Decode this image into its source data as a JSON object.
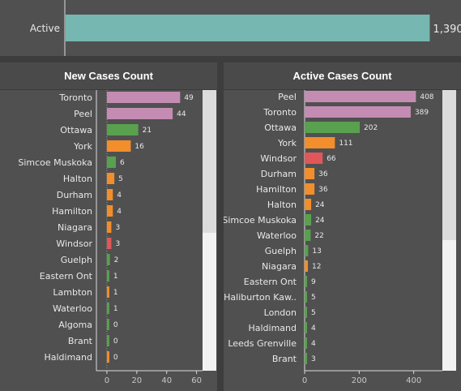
{
  "colors": {
    "purple": "#c48cb3",
    "green": "#59a14f",
    "orange": "#f28e2b",
    "red": "#e15759",
    "teal": "#76b7b2"
  },
  "chart_data": [
    {
      "type": "bar",
      "title": "",
      "categories": [
        "Active"
      ],
      "values": [
        1390
      ],
      "value_labels": [
        "1,390"
      ],
      "colors": [
        "teal"
      ],
      "xlim": [
        0,
        1500
      ],
      "show_axis": false
    },
    {
      "type": "bar",
      "title": "New Cases Count",
      "categories": [
        "Toronto",
        "Peel",
        "Ottawa",
        "York",
        "Simcoe Muskoka",
        "Halton",
        "Durham",
        "Hamilton",
        "Niagara",
        "Windsor",
        "Guelph",
        "Eastern Ont",
        "Lambton",
        "Waterloo",
        "Algoma",
        "Brant",
        "Haldimand"
      ],
      "values": [
        49,
        44,
        21,
        16,
        6,
        5,
        4,
        4,
        3,
        3,
        2,
        1,
        1,
        1,
        0,
        0,
        0
      ],
      "colors": [
        "purple",
        "purple",
        "green",
        "orange",
        "green",
        "orange",
        "orange",
        "orange",
        "orange",
        "red",
        "green",
        "green",
        "orange",
        "green",
        "green",
        "green",
        "orange"
      ],
      "xlim": [
        -7,
        64
      ],
      "xticks": [
        0,
        20,
        40,
        60
      ],
      "grid": false
    },
    {
      "type": "bar",
      "title": "Active Cases Count",
      "categories": [
        "Peel",
        "Toronto",
        "Ottawa",
        "York",
        "Windsor",
        "Durham",
        "Hamilton",
        "Halton",
        "Simcoe Muskoka",
        "Waterloo",
        "Guelph",
        "Niagara",
        "Eastern Ont",
        "Haliburton Kaw..",
        "London",
        "Haldimand",
        "Leeds Grenville",
        "Brant"
      ],
      "values": [
        408,
        389,
        202,
        111,
        66,
        36,
        36,
        24,
        24,
        22,
        13,
        12,
        9,
        5,
        5,
        4,
        4,
        3
      ],
      "colors": [
        "purple",
        "purple",
        "green",
        "orange",
        "red",
        "orange",
        "orange",
        "orange",
        "green",
        "green",
        "green",
        "orange",
        "green",
        "green",
        "green",
        "green",
        "green",
        "green"
      ],
      "xlim": [
        0,
        505
      ],
      "xticks": [
        0,
        200,
        400
      ],
      "grid": false
    }
  ]
}
